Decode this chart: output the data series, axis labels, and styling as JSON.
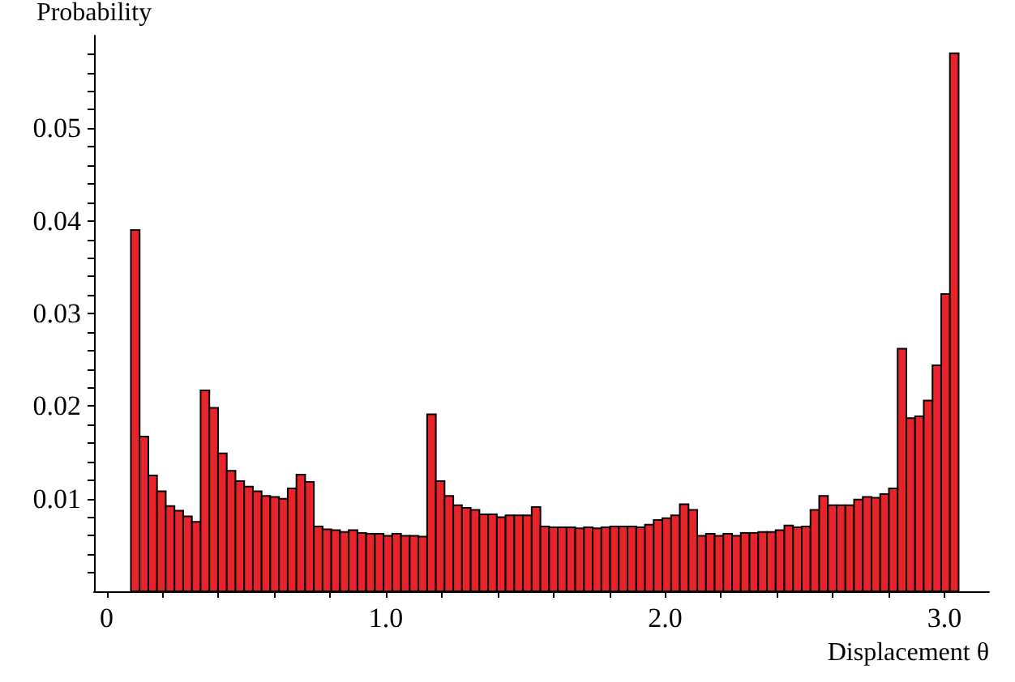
{
  "chart_data": {
    "type": "histogram",
    "xlabel": "Displacement θ",
    "ylabel": "Probability",
    "color": "#e8232a",
    "bins": [
      0.087,
      0.1182,
      0.1494,
      0.1806,
      0.2118,
      0.243,
      0.2742,
      0.3054,
      0.3366,
      0.3678,
      0.399,
      0.4302,
      0.4614,
      0.4926,
      0.5238,
      0.555,
      0.5862,
      0.6174,
      0.6486,
      0.6798,
      0.711,
      0.7422,
      0.7734,
      0.8046,
      0.8358,
      0.867,
      0.8982,
      0.9294,
      0.9606,
      0.9918,
      1.023,
      1.0542,
      1.0854,
      1.1166,
      1.1478,
      1.179,
      1.2102,
      1.2414,
      1.2726,
      1.3038,
      1.335,
      1.3662,
      1.3974,
      1.4286,
      1.4598,
      1.491,
      1.5222,
      1.5534,
      1.5846,
      1.6158,
      1.647,
      1.6782,
      1.7094,
      1.7406,
      1.7718,
      1.803,
      1.8342,
      1.8654,
      1.8966,
      1.9278,
      1.959,
      1.9902,
      2.0214,
      2.0526,
      2.0838,
      2.115,
      2.1462,
      2.1774,
      2.2086,
      2.2398,
      2.271,
      2.3022,
      2.3334,
      2.3646,
      2.3958,
      2.427,
      2.4582,
      2.4894,
      2.5206,
      2.5518,
      2.583,
      2.6142,
      2.6454,
      2.6766,
      2.7078,
      2.739,
      2.7702,
      2.8014,
      2.8326,
      2.8638,
      2.895,
      2.9262,
      2.9574,
      2.9886,
      3.0198,
      3.051
    ],
    "values": [
      0.039,
      0.0167,
      0.0125,
      0.0108,
      0.0092,
      0.0087,
      0.0081,
      0.0075,
      0.0217,
      0.0198,
      0.0149,
      0.013,
      0.0119,
      0.0113,
      0.0108,
      0.0103,
      0.0102,
      0.01,
      0.0111,
      0.0126,
      0.0118,
      0.007,
      0.0067,
      0.0066,
      0.0064,
      0.0066,
      0.0063,
      0.0062,
      0.0062,
      0.006,
      0.0062,
      0.006,
      0.006,
      0.0059,
      0.0191,
      0.0119,
      0.0103,
      0.0093,
      0.009,
      0.0088,
      0.0083,
      0.0083,
      0.008,
      0.0082,
      0.0082,
      0.0082,
      0.0091,
      0.007,
      0.0069,
      0.0069,
      0.0069,
      0.0068,
      0.0069,
      0.0068,
      0.0069,
      0.007,
      0.007,
      0.007,
      0.0069,
      0.0072,
      0.0077,
      0.0079,
      0.0082,
      0.0094,
      0.0088,
      0.006,
      0.0062,
      0.006,
      0.0062,
      0.006,
      0.0063,
      0.0063,
      0.0064,
      0.0064,
      0.0066,
      0.0071,
      0.0069,
      0.007,
      0.0088,
      0.0103,
      0.0093,
      0.0093,
      0.0093,
      0.0099,
      0.0102,
      0.0101,
      0.0105,
      0.0111,
      0.0262,
      0.0187,
      0.0189,
      0.0206,
      0.0244,
      0.0321,
      0.0581
    ],
    "xlim": [
      -0.045,
      3.16
    ],
    "xticks": [
      {
        "value": 0,
        "label": "0"
      },
      {
        "value": 0.2,
        "label": null
      },
      {
        "value": 0.4,
        "label": null
      },
      {
        "value": 0.6,
        "label": null
      },
      {
        "value": 0.8,
        "label": null
      },
      {
        "value": 1,
        "label": "1.0"
      },
      {
        "value": 1.2,
        "label": null
      },
      {
        "value": 1.4,
        "label": null
      },
      {
        "value": 1.6,
        "label": null
      },
      {
        "value": 1.8,
        "label": null
      },
      {
        "value": 2,
        "label": "2.0"
      },
      {
        "value": 2.2,
        "label": null
      },
      {
        "value": 2.4,
        "label": null
      },
      {
        "value": 2.6,
        "label": null
      },
      {
        "value": 2.8,
        "label": null
      },
      {
        "value": 3,
        "label": "3.0"
      }
    ],
    "ylim": [
      0,
      0.06
    ],
    "yticks": [
      {
        "value": 0.002,
        "label": null
      },
      {
        "value": 0.004,
        "label": null
      },
      {
        "value": 0.006,
        "label": null
      },
      {
        "value": 0.008,
        "label": null
      },
      0.01,
      {
        "value": 0.012,
        "label": null
      },
      {
        "value": 0.014,
        "label": null
      },
      {
        "value": 0.016,
        "label": null
      },
      {
        "value": 0.018,
        "label": null
      },
      0.02,
      {
        "value": 0.022,
        "label": null
      },
      {
        "value": 0.024,
        "label": null
      },
      {
        "value": 0.026,
        "label": null
      },
      {
        "value": 0.028,
        "label": null
      },
      0.03,
      {
        "value": 0.032,
        "label": null
      },
      {
        "value": 0.034,
        "label": null
      },
      {
        "value": 0.036,
        "label": null
      },
      {
        "value": 0.038,
        "label": null
      },
      0.04,
      {
        "value": 0.042,
        "label": null
      },
      {
        "value": 0.044,
        "label": null
      },
      {
        "value": 0.046,
        "label": null
      },
      {
        "value": 0.048,
        "label": null
      },
      0.05,
      {
        "value": 0.052,
        "label": null
      },
      {
        "value": 0.054,
        "label": null
      },
      {
        "value": 0.056,
        "label": null
      },
      {
        "value": 0.058,
        "label": null
      }
    ],
    "grid": false
  }
}
